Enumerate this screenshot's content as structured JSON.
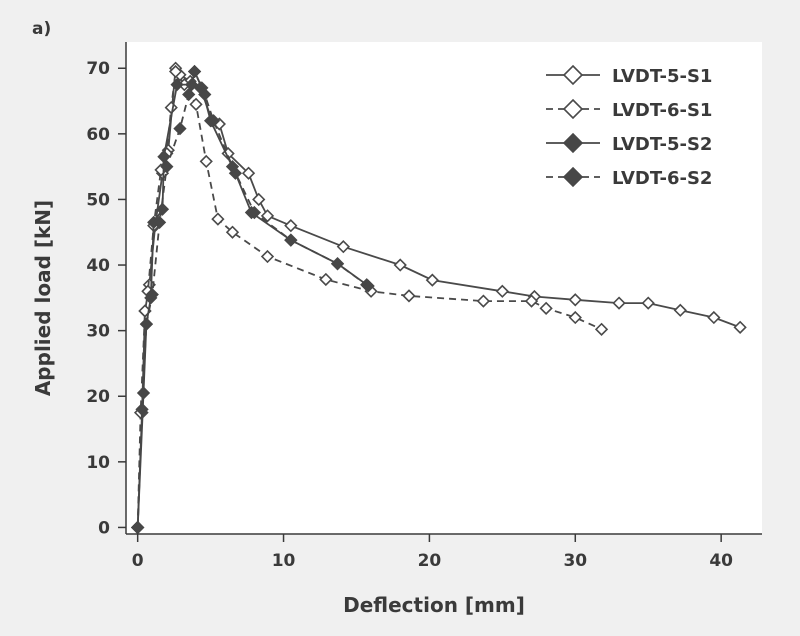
{
  "panel_label": "a)",
  "chart_data": {
    "type": "line",
    "xlabel": "Deflection [mm]",
    "ylabel": "Applied load [kN]",
    "xlim": [
      -0.8,
      42.8
    ],
    "ylim": [
      -1,
      74
    ],
    "xticks": [
      0,
      10,
      20,
      30,
      40
    ],
    "yticks": [
      0,
      10,
      20,
      30,
      40,
      50,
      60,
      70
    ],
    "grid": false,
    "legend": "top-right",
    "series": [
      {
        "name": "LVDT-5-S1",
        "color": "#4a4a4a",
        "dash": "solid",
        "marker": "diamond-open",
        "points": [
          [
            0,
            0
          ],
          [
            0.3,
            17.5
          ],
          [
            0.5,
            33
          ],
          [
            0.8,
            37
          ],
          [
            1.2,
            46
          ],
          [
            1.7,
            54
          ],
          [
            2.1,
            57.5
          ],
          [
            2.6,
            70
          ],
          [
            2.9,
            69
          ],
          [
            3.6,
            68
          ],
          [
            4.3,
            67
          ],
          [
            5.1,
            62
          ],
          [
            5.6,
            61.5
          ],
          [
            6.2,
            57
          ],
          [
            7.6,
            54
          ],
          [
            8.3,
            50
          ],
          [
            8.9,
            47.5
          ],
          [
            10.5,
            46
          ],
          [
            14.1,
            42.8
          ],
          [
            18,
            40
          ],
          [
            20.2,
            37.7
          ],
          [
            25,
            36
          ],
          [
            27.2,
            35.2
          ],
          [
            30,
            34.7
          ],
          [
            33,
            34.2
          ],
          [
            35,
            34.2
          ],
          [
            37.2,
            33.1
          ],
          [
            39.5,
            32
          ],
          [
            41.3,
            30.5
          ]
        ]
      },
      {
        "name": "LVDT-6-S1",
        "color": "#4a4a4a",
        "dash": "dashed",
        "marker": "diamond-open",
        "points": [
          [
            0,
            0
          ],
          [
            0.2,
            17.5
          ],
          [
            0.5,
            33
          ],
          [
            0.7,
            36
          ],
          [
            1.1,
            46
          ],
          [
            1.6,
            54.5
          ],
          [
            2.0,
            57
          ],
          [
            2.3,
            64
          ],
          [
            2.6,
            69.5
          ],
          [
            3.2,
            67.5
          ],
          [
            4.0,
            64.5
          ],
          [
            4.7,
            55.8
          ],
          [
            5.5,
            47
          ],
          [
            6.5,
            45
          ],
          [
            8.9,
            41.3
          ],
          [
            12.9,
            37.8
          ],
          [
            16,
            36
          ],
          [
            18.6,
            35.3
          ],
          [
            23.7,
            34.5
          ],
          [
            27,
            34.5
          ],
          [
            28,
            33.4
          ],
          [
            30,
            32
          ],
          [
            31.8,
            30.2
          ]
        ]
      },
      {
        "name": "LVDT-5-S2",
        "color": "#474747",
        "dash": "solid",
        "marker": "diamond-filled",
        "points": [
          [
            0,
            0
          ],
          [
            0.4,
            20.5
          ],
          [
            0.6,
            31
          ],
          [
            0.9,
            35
          ],
          [
            1.1,
            46.5
          ],
          [
            1.7,
            48.5
          ],
          [
            1.8,
            56.5
          ],
          [
            2.7,
            67.5
          ],
          [
            3.7,
            67.5
          ],
          [
            3.9,
            69.5
          ],
          [
            4.4,
            67
          ],
          [
            5.0,
            62
          ],
          [
            6.7,
            54
          ],
          [
            7.8,
            48
          ],
          [
            10.5,
            43.8
          ],
          [
            13.7,
            40.2
          ],
          [
            15.7,
            37
          ]
        ]
      },
      {
        "name": "LVDT-6-S2",
        "color": "#474747",
        "dash": "dashed",
        "marker": "diamond-filled",
        "points": [
          [
            0,
            0
          ],
          [
            0.3,
            18
          ],
          [
            0.6,
            31
          ],
          [
            1.0,
            35.5
          ],
          [
            1.5,
            46.5
          ],
          [
            2.0,
            55
          ],
          [
            2.9,
            60.8
          ],
          [
            3.5,
            66
          ],
          [
            3.9,
            69.5
          ],
          [
            4.6,
            66
          ],
          [
            5.2,
            62
          ],
          [
            6.5,
            55
          ],
          [
            8,
            48
          ],
          [
            10.5,
            43.8
          ],
          [
            13.7,
            40.2
          ],
          [
            15.8,
            36.8
          ]
        ]
      }
    ]
  }
}
